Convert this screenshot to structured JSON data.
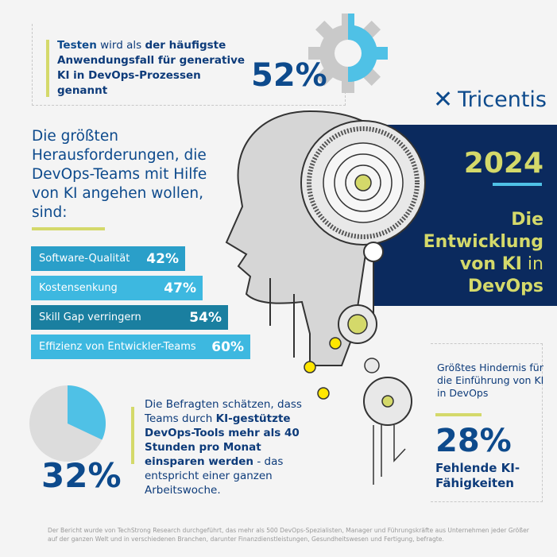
{
  "intro": {
    "pre": "Testen",
    "mid": " wird als ",
    "post": "der häufigste Anwendungsfall für generative KI in DevOps-Prozessen genannt",
    "value": "52%"
  },
  "brand": {
    "logo": "Tricentis"
  },
  "hero": {
    "year": "2024",
    "title_a": "Die Entwicklung von KI",
    "title_b": " in ",
    "title_c": "DevOps"
  },
  "challenges": {
    "heading": "Die größten Herausforderungen, die DevOps-Teams mit Hilfe von KI angehen wollen, sind:",
    "items": [
      {
        "label": "Software-Qualität",
        "value": "42%",
        "color": "#2a9fc9"
      },
      {
        "label": "Kostensenkung",
        "value": "47%",
        "color": "#3db8e0"
      },
      {
        "label": "Skill Gap verringern",
        "value": "54%",
        "color": "#1a7fa0"
      },
      {
        "label": "Effizienz von Entwickler-Teams",
        "value": "60%",
        "color": "#3db8e0"
      }
    ]
  },
  "savings": {
    "pre": "Die Befragten schätzen, dass Teams durch ",
    "bold": "KI-gestützte DevOps-Tools mehr als 40 Stunden pro Monat einsparen werden",
    "post": " - das entspricht einer ganzen Arbeitswoche.",
    "value": "32%",
    "fraction": 0.32
  },
  "obstacle": {
    "heading": "Größtes Hindernis für die Einführung von KI in DevOps",
    "value": "28%",
    "label": "Fehlende KI-Fähigkeiten"
  },
  "footer": "Der Bericht wurde von TechStrong Research durchgeführt, das mehr als 500 DevOps-Spezialisten, Manager und Führungskräfte aus Unternehmen jeder Größer auf der ganzen Welt und in verschiedenen Branchen, darunter Finanzdienstleistungen, Gesundheitswesen und Fertigung, befragte.",
  "colors": {
    "navy": "#0b2a5e",
    "yellow": "#d4d96a",
    "blue": "#0d4a8c",
    "cyan": "#3db8e0"
  }
}
